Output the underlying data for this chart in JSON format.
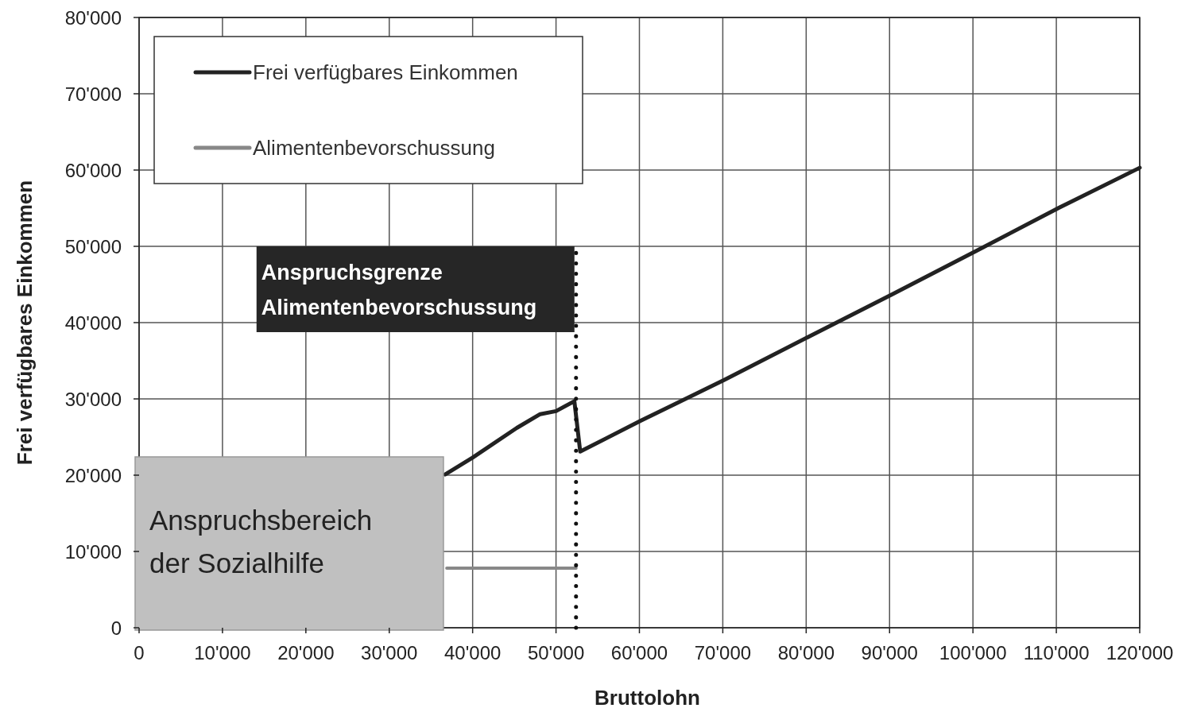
{
  "chart_data": {
    "type": "line",
    "xlabel": "Bruttolohn",
    "ylabel": "Frei verfügbares Einkommen",
    "xlim": [
      0,
      120000
    ],
    "xticks": [
      0,
      {
        "value": 10000,
        "label": "10'000"
      },
      {
        "value": 20000,
        "label": "20'000"
      },
      {
        "value": 30000,
        "label": "30'000"
      },
      {
        "value": 40000,
        "label": "40'000"
      },
      {
        "value": 50000,
        "label": "50'000"
      },
      {
        "value": 60000,
        "label": "60'000"
      },
      {
        "value": 70000,
        "label": "70'000"
      },
      {
        "value": 80000,
        "label": "80'000"
      },
      {
        "value": 90000,
        "label": "90'000"
      },
      {
        "value": 100000,
        "label": "100'000"
      },
      {
        "value": 110000,
        "label": "110'000"
      },
      {
        "value": 120000,
        "label": "120'000"
      }
    ],
    "ylim": [
      0,
      80000
    ],
    "yticks": [
      0,
      {
        "value": 10000,
        "label": "10'000"
      },
      {
        "value": 20000,
        "label": "20'000"
      },
      {
        "value": 30000,
        "label": "30'000"
      },
      {
        "value": 40000,
        "label": "40'000"
      },
      {
        "value": 50000,
        "label": "50'000"
      },
      {
        "value": 60000,
        "label": "60'000"
      },
      {
        "value": 70000,
        "label": "70'000"
      },
      {
        "value": 80000,
        "label": "80'000"
      }
    ],
    "grid": true,
    "legend": "top left",
    "series": [
      {
        "name": "Frei verfügbares Einkommen",
        "color": "#222222",
        "x": [
          36700,
          40000,
          45300,
          48100,
          50000,
          52200,
          52900,
          60100,
          70200,
          80400,
          90300,
          100400,
          110400,
          120000
        ],
        "values": [
          20100,
          22300,
          26200,
          28000,
          28400,
          29700,
          23100,
          27100,
          32500,
          38200,
          43700,
          49400,
          55100,
          60300
        ]
      },
      {
        "name": "Alimentenbevorschussung",
        "color": "#888888",
        "x": [
          36900,
          52400
        ],
        "values": [
          7800,
          7800
        ]
      }
    ],
    "ref_lines": [
      {
        "axis": "x",
        "value": 52400,
        "label": "Anspruchsgrenze Alimentenbevorschussung",
        "color": "#111111",
        "line_style": "dotted"
      }
    ],
    "bands": [
      {
        "axis": "x",
        "from": 0,
        "to": 36500,
        "label": "Anspruchsbereich der Sozialhilfe",
        "color": "#c0c0c0"
      }
    ]
  }
}
